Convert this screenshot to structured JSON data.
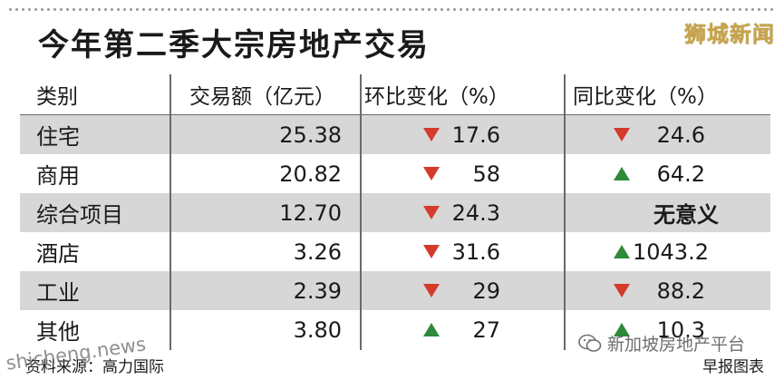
{
  "title": "今年第二季大宗房地产交易",
  "watermark_top": "狮城新闻",
  "headers": [
    "类别",
    "交易额（亿元）",
    "环比变化（%）",
    "同比变化（%）"
  ],
  "rows": [
    {
      "category": "住宅",
      "amount": "25.38",
      "qoq": {
        "dir": "down",
        "value": "17.6"
      },
      "yoy": {
        "dir": "down",
        "value": "24.6"
      }
    },
    {
      "category": "商用",
      "amount": "20.82",
      "qoq": {
        "dir": "down",
        "value": "58"
      },
      "yoy": {
        "dir": "up",
        "value": "64.2"
      }
    },
    {
      "category": "综合项目",
      "amount": "12.70",
      "qoq": {
        "dir": "down",
        "value": "24.3"
      },
      "yoy": {
        "dir": "none",
        "value": "无意义"
      }
    },
    {
      "category": "酒店",
      "amount": "3.26",
      "qoq": {
        "dir": "down",
        "value": "31.6"
      },
      "yoy": {
        "dir": "up",
        "value": "1043.2"
      }
    },
    {
      "category": "工业",
      "amount": "2.39",
      "qoq": {
        "dir": "down",
        "value": "29"
      },
      "yoy": {
        "dir": "down",
        "value": "88.2"
      }
    },
    {
      "category": "其他",
      "amount": "3.80",
      "qoq": {
        "dir": "up",
        "value": "27"
      },
      "yoy": {
        "dir": "up",
        "value": "10.3"
      }
    }
  ],
  "footer": {
    "source": "资料来源：高力国际",
    "credit": "早报图表"
  },
  "watermark_left": "shicheng.news",
  "watermark_right": "新加坡房地产平台",
  "colors": {
    "down": "#d53a2a",
    "up": "#2e8a3a",
    "shade": "#d7d7d7"
  }
}
